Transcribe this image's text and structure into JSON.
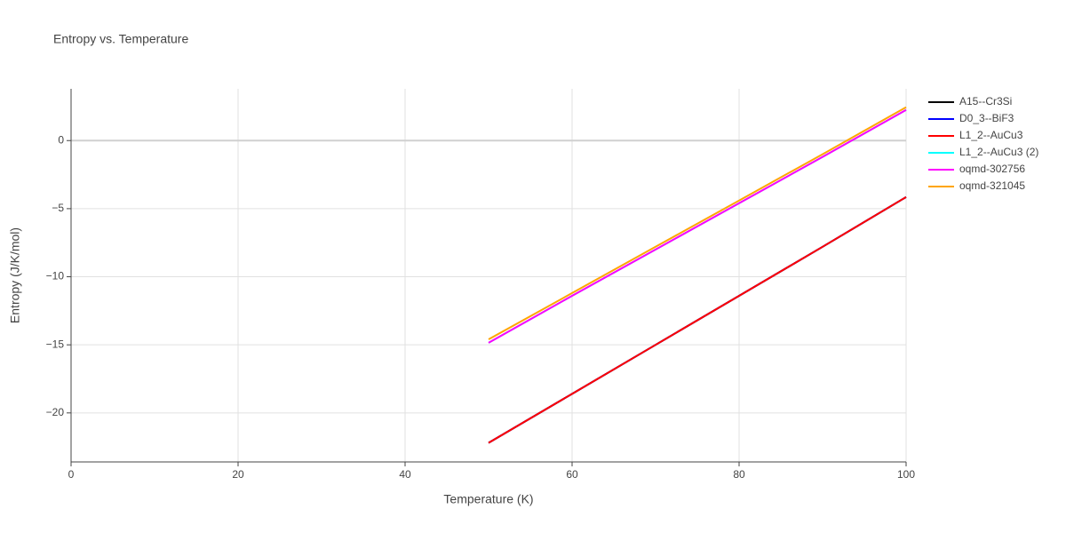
{
  "chart_data": {
    "type": "line",
    "title": "Entropy vs. Temperature",
    "x_label": "Temperature (K)",
    "y_label": "Entropy (J/K/mol)",
    "x": [
      50,
      60,
      70,
      80,
      90,
      100
    ],
    "series": [
      {
        "name": "A15--Cr3Si",
        "color": "#000000",
        "values": [
          -22.2,
          -18.6,
          -15.0,
          -11.4,
          -7.8,
          -4.15
        ]
      },
      {
        "name": "D0_3--BiF3",
        "color": "#0000ff",
        "values": [
          -22.2,
          -18.6,
          -15.0,
          -11.4,
          -7.8,
          -4.15
        ]
      },
      {
        "name": "L1_2--AuCu3",
        "color": "#ff0000",
        "values": [
          -22.2,
          -18.6,
          -15.0,
          -11.4,
          -7.8,
          -4.15
        ]
      },
      {
        "name": "L1_2--AuCu3 (2)",
        "color": "#00ffff",
        "values": [
          -14.85,
          -11.4,
          -8.0,
          -4.6,
          -1.2,
          2.25
        ]
      },
      {
        "name": "oqmd-302756",
        "color": "#ff00ff",
        "values": [
          -14.85,
          -11.4,
          -8.0,
          -4.6,
          -1.2,
          2.25
        ]
      },
      {
        "name": "oqmd-321045",
        "color": "#ffa500",
        "values": [
          -14.6,
          -11.2,
          -7.8,
          -4.4,
          -1.0,
          2.45
        ]
      }
    ],
    "xlim": [
      0,
      100
    ],
    "xticks": [
      0,
      20,
      40,
      60,
      80,
      100
    ],
    "ylim": [
      -23.6,
      3.8
    ],
    "yticks": [
      {
        "value": -20,
        "label": "−20"
      },
      {
        "value": -15,
        "label": "−15"
      },
      {
        "value": -10,
        "label": "−10"
      },
      {
        "value": -5,
        "label": "−5"
      },
      0
    ],
    "grid": true
  }
}
